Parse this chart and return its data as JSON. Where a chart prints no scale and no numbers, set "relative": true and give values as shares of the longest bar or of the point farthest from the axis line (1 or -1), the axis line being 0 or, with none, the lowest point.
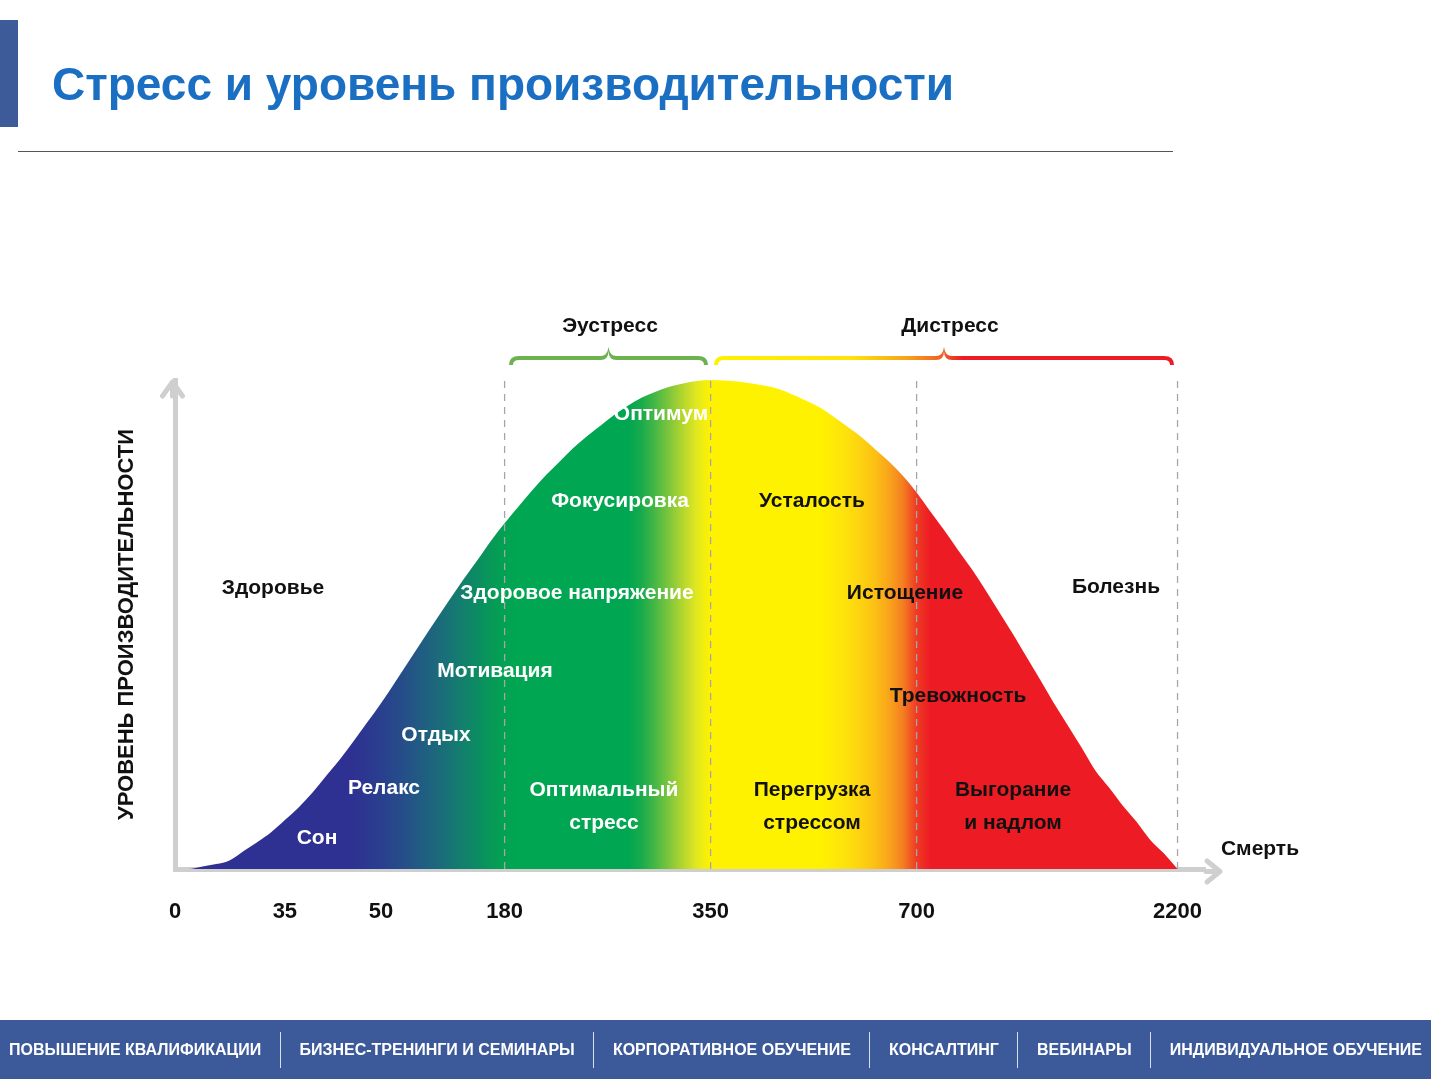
{
  "chart_data": {
    "type": "area",
    "title": "Стресс и уровень производительности",
    "ylabel": "УРОВЕНЬ ПРОИЗВОДИТЕЛЬНОСТИ",
    "relative": true,
    "categories": [
      "0",
      null,
      null,
      null,
      null,
      null,
      null,
      null,
      "35",
      null,
      null,
      null,
      null,
      null,
      null,
      "50",
      null,
      null,
      null,
      null,
      null,
      null,
      null,
      null,
      "180",
      null,
      null,
      null,
      null,
      null,
      null,
      null,
      null,
      null,
      null,
      null,
      null,
      null,
      null,
      "350",
      null,
      null,
      null,
      null,
      null,
      null,
      null,
      null,
      null,
      null,
      null,
      null,
      null,
      null,
      "700",
      null,
      null,
      null,
      null,
      null,
      null,
      null,
      null,
      null,
      null,
      null,
      null,
      null,
      null,
      null,
      null,
      null,
      null,
      "2200",
      null,
      null
    ],
    "values": [
      0,
      0,
      0.005,
      0.01,
      0.018,
      0.037,
      0.055,
      0.075,
      0.1,
      0.126,
      0.156,
      0.19,
      0.224,
      0.261,
      0.3,
      0.339,
      0.381,
      0.424,
      0.467,
      0.509,
      0.551,
      0.592,
      0.631,
      0.671,
      0.707,
      0.741,
      0.774,
      0.805,
      0.833,
      0.861,
      0.885,
      0.907,
      0.929,
      0.948,
      0.964,
      0.976,
      0.986,
      0.993,
      0.998,
      1,
      0.999,
      0.997,
      0.993,
      0.988,
      0.981,
      0.97,
      0.957,
      0.943,
      0.924,
      0.904,
      0.883,
      0.858,
      0.833,
      0.804,
      0.77,
      0.731,
      0.693,
      0.653,
      0.614,
      0.571,
      0.526,
      0.481,
      0.434,
      0.387,
      0.339,
      0.294,
      0.249,
      0.202,
      0.167,
      0.13,
      0.097,
      0.06,
      0.032,
      0,
      null,
      null
    ],
    "colors": [
      "#2e3192",
      "#2e3192",
      "#2e3192",
      "#2e3192",
      "#2e3192",
      "#2e3192",
      "#2e3192",
      "#2e3192",
      "#2e3192",
      "#2e3192",
      "#2e3192",
      "#2e3192",
      "#2e3192",
      "#2e3192",
      "#2c3890",
      "#2a3f8e",
      "#27488b",
      "#245287",
      "#205d82",
      "#1c687c",
      "#177475",
      "#12806c",
      "#0c8c62",
      "#079858",
      "#02a252",
      "#00a651",
      "#00a651",
      "#00a651",
      "#00a651",
      "#00a651",
      "#00a651",
      "#00a651",
      "#00a651",
      "#00a651",
      "#1aab4b",
      "#49b845",
      "#7fc63c",
      "#b5d62e",
      "#e2e820",
      "#fff200",
      "#fff200",
      "#fff200",
      "#fff200",
      "#fff200",
      "#fff200",
      "#fff200",
      "#fff200",
      "#fff200",
      "#fee908",
      "#fde00d",
      "#fdd110",
      "#fcbf14",
      "#f9a41b",
      "#f47f21",
      "#ee3b24",
      "#ed1c24",
      "#ed1c24",
      "#ed1c24",
      "#ed1c24",
      "#ed1c24",
      "#ed1c24",
      "#ed1c24",
      "#ed1c24",
      "#ed1c24",
      "#ed1c24",
      "#ed1c24",
      "#ed1c24",
      "#ed1c24",
      "#ed1c24",
      "#ed1c24",
      "#ed1c24",
      "#ed1c24",
      "#ed1c24",
      "#ed1c24",
      "#ed1c24",
      "#ed1c24"
    ],
    "ref_lines": [
      {
        "axis": "x",
        "value": "180",
        "color": "#a6a6a6",
        "line_style": "dashed"
      },
      {
        "axis": "x",
        "value": "350",
        "color": "#a6a6a6",
        "line_style": "dashed"
      },
      {
        "axis": "x",
        "value": "700",
        "color": "#a6a6a6",
        "line_style": "dashed"
      },
      {
        "axis": "x",
        "value": "2200",
        "color": "#a6a6a6",
        "line_style": "dashed"
      }
    ],
    "annotations": [
      "Эустресс",
      "Дистресс",
      "Здоровье",
      "Сон",
      "Релакс",
      "Отдых",
      "Мотивация",
      "Здоровое напряжение",
      "Фокусировка",
      "Оптимум",
      "Оптимальный стресс",
      "Усталость",
      "Перегрузка стрессом",
      "Истощение",
      "Тревожность",
      "Выгорание и надлом",
      "Болезнь",
      "Смерть",
      "ПОВЫШЕНИЕ КВАЛИФИКАЦИИ",
      "БИЗНЕС-ТРЕНИНГИ И СЕМИНАРЫ",
      "КОРПОРАТИВНОЕ ОБУЧЕНИЕ",
      "КОНСАЛТИНГ",
      "ВЕБИНАРЫ",
      "ИНДИВИДУАЛЬНОЕ ОБУЧЕНИЕ"
    ]
  }
}
